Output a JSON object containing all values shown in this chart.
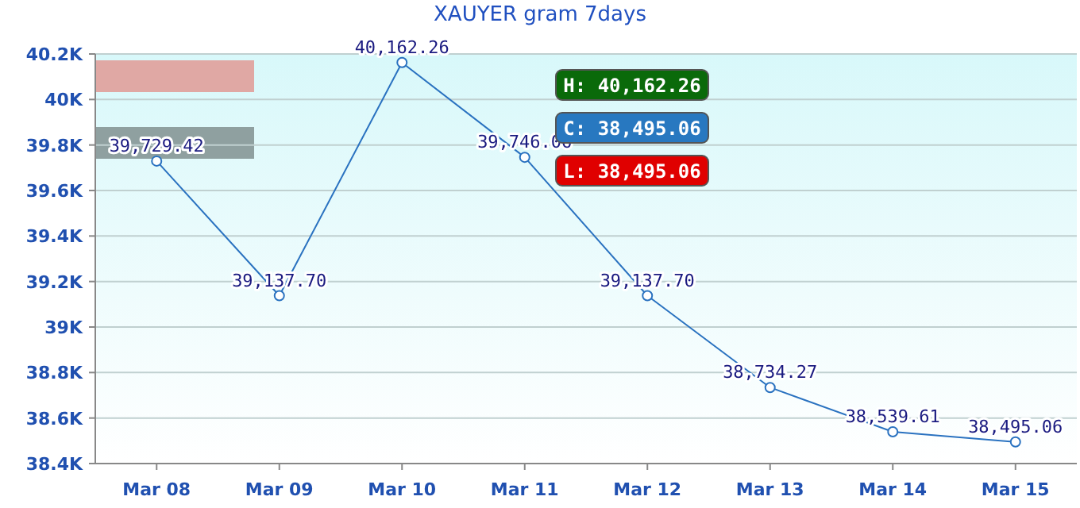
{
  "chart_data": {
    "type": "line",
    "title": "XAUYER gram  7days",
    "categories": [
      "Mar 08",
      "Mar 09",
      "Mar 10",
      "Mar 11",
      "Mar 12",
      "Mar 13",
      "Mar 14",
      "Mar 15"
    ],
    "series": [
      {
        "color": "#2a72c0",
        "values": [
          39729.42,
          39137.7,
          40162.26,
          39746.06,
          39137.7,
          38734.27,
          38539.61,
          38495.06
        ],
        "value_labels": [
          "39,729.42",
          "39,137.70",
          "40,162.26",
          "39,746.06",
          "39,137.70",
          "38,734.27",
          "38,539.61",
          "38,495.06"
        ]
      }
    ],
    "ylim": [
      38400,
      40200
    ],
    "yticks": [
      {
        "value": 38400,
        "label": "38.4K"
      },
      {
        "value": 38600,
        "label": "38.6K"
      },
      {
        "value": 38800,
        "label": "38.8K"
      },
      {
        "value": 39000,
        "label": "39K"
      },
      {
        "value": 39200,
        "label": "39.2K"
      },
      {
        "value": 39400,
        "label": "39.4K"
      },
      {
        "value": 39600,
        "label": "39.6K"
      },
      {
        "value": 39800,
        "label": "39.8K"
      },
      {
        "value": 40000,
        "label": "40K"
      },
      {
        "value": 40200,
        "label": "40.2K"
      }
    ],
    "grid": "y",
    "marker": "circle",
    "line_style": "solid",
    "annotations": [
      "H: 40,162.26",
      "C: 38,495.06",
      "L: 38,495.06"
    ]
  }
}
